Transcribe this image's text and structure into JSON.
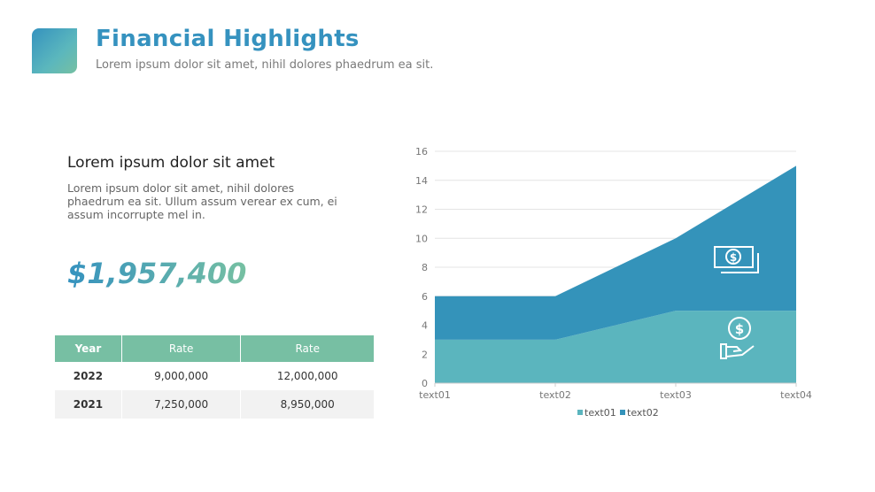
{
  "header": {
    "title": "Financial Highlights",
    "subtitle": "Lorem ipsum dolor sit amet, nihil dolores phaedrum ea sit."
  },
  "left": {
    "heading": "Lorem ipsum dolor sit amet",
    "body": "Lorem ipsum dolor sit amet, nihil dolores phaedrum ea sit. Ullum assum verear ex cum, ei assum incorrupte mel in.",
    "amount": "$1,957,400"
  },
  "table": {
    "headers": [
      "Year",
      "Rate",
      "Rate"
    ],
    "rows": [
      [
        "2022",
        "9,000,000",
        "12,000,000"
      ],
      [
        "2021",
        "7,250,000",
        "8,950,000"
      ]
    ]
  },
  "colors": {
    "accent": "#3592bf",
    "green": "#77bfa3"
  },
  "chart_data": {
    "type": "area",
    "stacked": true,
    "categories": [
      "text01",
      "text02",
      "text03",
      "text04"
    ],
    "series": [
      {
        "name": "text01",
        "values": [
          3,
          3,
          5,
          5
        ],
        "color": "#5bb5be"
      },
      {
        "name": "text02",
        "values": [
          3,
          3,
          5,
          10
        ],
        "color": "#3493ba"
      }
    ],
    "ylim": [
      0,
      16
    ],
    "yticks": [
      0,
      2,
      4,
      6,
      8,
      10,
      12,
      14,
      16
    ],
    "grid": true,
    "legend": "bottom",
    "icons": [
      "money-bill-icon",
      "hand-coin-icon"
    ]
  }
}
